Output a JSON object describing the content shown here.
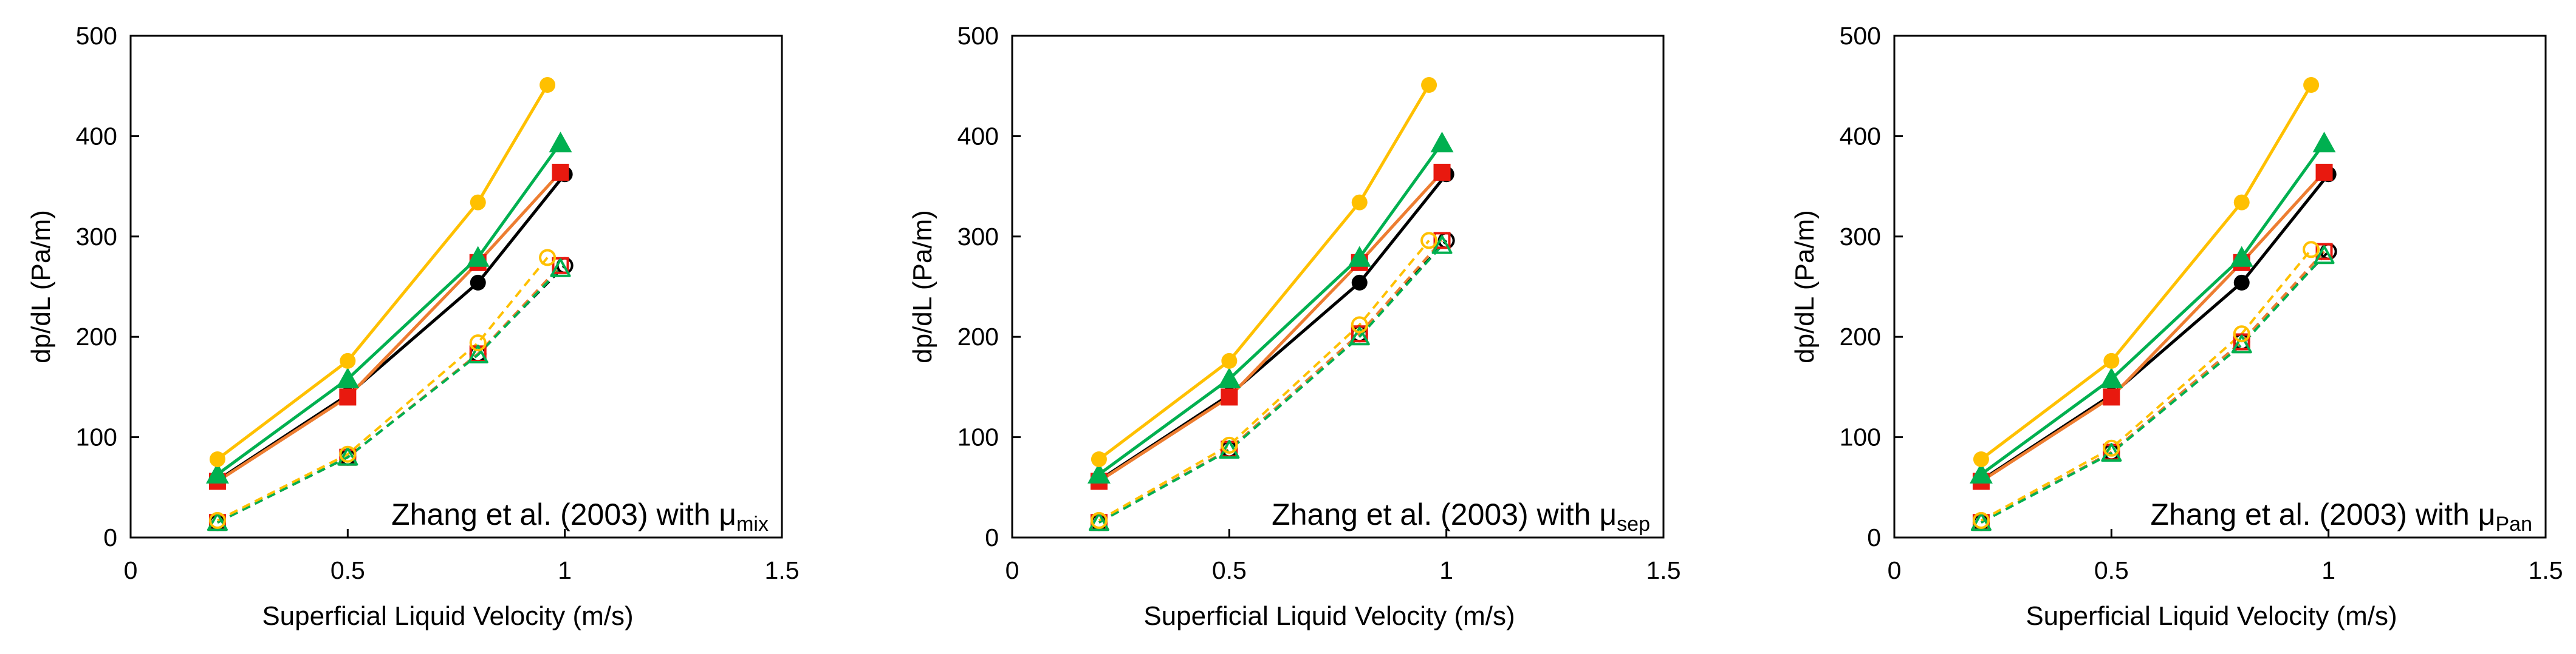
{
  "chart_data": [
    {
      "type": "line",
      "annotation": {
        "prefix": "Zhang et al. (2003) with μ",
        "subscript": "mix"
      },
      "xlabel": "Superficial Liquid Velocity (m/s)",
      "ylabel": "dp/dL  (Pa/m)",
      "xlim": [
        0,
        1.5
      ],
      "ylim": [
        0,
        500
      ],
      "xticks": [
        "0",
        "0.5",
        "1",
        "1.5"
      ],
      "yticks": [
        "0",
        "100",
        "200",
        "300",
        "400",
        "500"
      ],
      "series": [
        {
          "name": "experiment-black",
          "color": "#000000",
          "marker": "circle",
          "dashed": false,
          "filled": true,
          "x": [
            0.2,
            0.5,
            0.8,
            1.0
          ],
          "y": [
            57,
            142,
            254,
            362
          ]
        },
        {
          "name": "experiment-red",
          "color": "#e8190f",
          "line_color": "#ed7d31",
          "marker": "square",
          "dashed": false,
          "filled": true,
          "x": [
            0.2,
            0.5,
            0.8,
            0.99
          ],
          "y": [
            56,
            140,
            274,
            364
          ]
        },
        {
          "name": "experiment-green",
          "color": "#00b050",
          "marker": "triangle",
          "dashed": false,
          "filled": true,
          "x": [
            0.2,
            0.5,
            0.8,
            0.99
          ],
          "y": [
            63,
            158,
            279,
            393
          ]
        },
        {
          "name": "experiment-yellow",
          "color": "#ffc000",
          "marker": "circle",
          "dashed": false,
          "filled": true,
          "x": [
            0.2,
            0.5,
            0.8,
            0.96
          ],
          "y": [
            78,
            176,
            334,
            451
          ]
        },
        {
          "name": "model-black",
          "color": "#000000",
          "marker": "circle",
          "dashed": true,
          "filled": false,
          "x": [
            0.2,
            0.5,
            0.8,
            1.0
          ],
          "y": [
            15,
            80,
            183,
            271
          ]
        },
        {
          "name": "model-red",
          "color": "#e8190f",
          "line_color": "#ed7d31",
          "marker": "square",
          "dashed": true,
          "filled": false,
          "x": [
            0.2,
            0.5,
            0.8,
            0.99
          ],
          "y": [
            15,
            80,
            183,
            271
          ]
        },
        {
          "name": "model-green",
          "color": "#00b050",
          "marker": "triangle",
          "dashed": true,
          "filled": false,
          "x": [
            0.2,
            0.5,
            0.8,
            0.99
          ],
          "y": [
            15,
            80,
            182,
            268
          ]
        },
        {
          "name": "model-yellow",
          "color": "#ffc000",
          "marker": "circle",
          "dashed": true,
          "filled": false,
          "x": [
            0.2,
            0.5,
            0.8,
            0.96
          ],
          "y": [
            17,
            83,
            194,
            279
          ]
        }
      ]
    },
    {
      "type": "line",
      "annotation": {
        "prefix": "Zhang et al. (2003) with μ",
        "subscript": "sep"
      },
      "xlabel": "Superficial Liquid Velocity (m/s)",
      "ylabel": "dp/dL  (Pa/m)",
      "xlim": [
        0,
        1.5
      ],
      "ylim": [
        0,
        500
      ],
      "xticks": [
        "0",
        "0.5",
        "1",
        "1.5"
      ],
      "yticks": [
        "0",
        "100",
        "200",
        "300",
        "400",
        "500"
      ],
      "series": [
        {
          "name": "experiment-black",
          "color": "#000000",
          "marker": "circle",
          "dashed": false,
          "filled": true,
          "x": [
            0.2,
            0.5,
            0.8,
            1.0
          ],
          "y": [
            57,
            142,
            254,
            362
          ]
        },
        {
          "name": "experiment-red",
          "color": "#e8190f",
          "line_color": "#ed7d31",
          "marker": "square",
          "dashed": false,
          "filled": true,
          "x": [
            0.2,
            0.5,
            0.8,
            0.99
          ],
          "y": [
            56,
            140,
            274,
            364
          ]
        },
        {
          "name": "experiment-green",
          "color": "#00b050",
          "marker": "triangle",
          "dashed": false,
          "filled": true,
          "x": [
            0.2,
            0.5,
            0.8,
            0.99
          ],
          "y": [
            63,
            158,
            279,
            393
          ]
        },
        {
          "name": "experiment-yellow",
          "color": "#ffc000",
          "marker": "circle",
          "dashed": false,
          "filled": true,
          "x": [
            0.2,
            0.5,
            0.8,
            0.96
          ],
          "y": [
            78,
            176,
            334,
            451
          ]
        },
        {
          "name": "model-black",
          "color": "#000000",
          "marker": "circle",
          "dashed": true,
          "filled": false,
          "x": [
            0.2,
            0.5,
            0.8,
            1.0
          ],
          "y": [
            15,
            88,
            203,
            296
          ]
        },
        {
          "name": "model-red",
          "color": "#e8190f",
          "line_color": "#ed7d31",
          "marker": "square",
          "dashed": true,
          "filled": false,
          "x": [
            0.2,
            0.5,
            0.8,
            0.99
          ],
          "y": [
            15,
            88,
            203,
            296
          ]
        },
        {
          "name": "model-green",
          "color": "#00b050",
          "marker": "triangle",
          "dashed": true,
          "filled": false,
          "x": [
            0.2,
            0.5,
            0.8,
            0.99
          ],
          "y": [
            15,
            87,
            200,
            291
          ]
        },
        {
          "name": "model-yellow",
          "color": "#ffc000",
          "marker": "circle",
          "dashed": true,
          "filled": false,
          "x": [
            0.2,
            0.5,
            0.8,
            0.96
          ],
          "y": [
            17,
            92,
            212,
            296
          ]
        }
      ]
    },
    {
      "type": "line",
      "annotation": {
        "prefix": "Zhang et al. (2003) with μ",
        "subscript": "Pan"
      },
      "xlabel": "Superficial Liquid Velocity (m/s)",
      "ylabel": "dp/dL  (Pa/m)",
      "xlim": [
        0,
        1.5
      ],
      "ylim": [
        0,
        500
      ],
      "xticks": [
        "0",
        "0.5",
        "1",
        "1.5"
      ],
      "yticks": [
        "0",
        "100",
        "200",
        "300",
        "400",
        "500"
      ],
      "series": [
        {
          "name": "experiment-black",
          "color": "#000000",
          "marker": "circle",
          "dashed": false,
          "filled": true,
          "x": [
            0.2,
            0.5,
            0.8,
            1.0
          ],
          "y": [
            57,
            142,
            254,
            362
          ]
        },
        {
          "name": "experiment-red",
          "color": "#e8190f",
          "line_color": "#ed7d31",
          "marker": "square",
          "dashed": false,
          "filled": true,
          "x": [
            0.2,
            0.5,
            0.8,
            0.99
          ],
          "y": [
            56,
            140,
            274,
            364
          ]
        },
        {
          "name": "experiment-green",
          "color": "#00b050",
          "marker": "triangle",
          "dashed": false,
          "filled": true,
          "x": [
            0.2,
            0.5,
            0.8,
            0.99
          ],
          "y": [
            63,
            158,
            279,
            393
          ]
        },
        {
          "name": "experiment-yellow",
          "color": "#ffc000",
          "marker": "circle",
          "dashed": false,
          "filled": true,
          "x": [
            0.2,
            0.5,
            0.8,
            0.96
          ],
          "y": [
            78,
            176,
            334,
            451
          ]
        },
        {
          "name": "model-black",
          "color": "#000000",
          "marker": "circle",
          "dashed": true,
          "filled": false,
          "x": [
            0.2,
            0.5,
            0.8,
            1.0
          ],
          "y": [
            15,
            85,
            195,
            285
          ]
        },
        {
          "name": "model-red",
          "color": "#e8190f",
          "line_color": "#ed7d31",
          "marker": "square",
          "dashed": true,
          "filled": false,
          "x": [
            0.2,
            0.5,
            0.8,
            0.99
          ],
          "y": [
            15,
            85,
            195,
            285
          ]
        },
        {
          "name": "model-green",
          "color": "#00b050",
          "marker": "triangle",
          "dashed": true,
          "filled": false,
          "x": [
            0.2,
            0.5,
            0.8,
            0.99
          ],
          "y": [
            15,
            84,
            192,
            281
          ]
        },
        {
          "name": "model-yellow",
          "color": "#ffc000",
          "marker": "circle",
          "dashed": true,
          "filled": false,
          "x": [
            0.2,
            0.5,
            0.8,
            0.96
          ],
          "y": [
            17,
            89,
            203,
            287
          ]
        }
      ]
    }
  ]
}
